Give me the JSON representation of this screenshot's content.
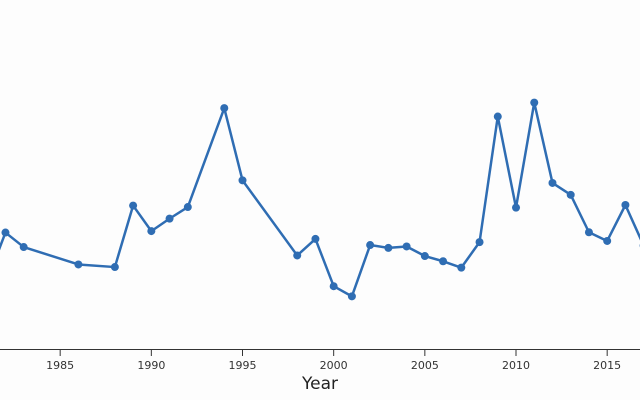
{
  "colors": {
    "line": "#2f6db3",
    "axis": "#333333",
    "background": "#fdfdfd"
  },
  "chart_data": {
    "type": "line",
    "xlabel": "Year",
    "ylabel": "",
    "title": "",
    "grid": false,
    "x_ticks": [
      1985,
      1990,
      1995,
      2000,
      2005,
      2010,
      2015
    ],
    "xlim": [
      1981.7,
      2016.8
    ],
    "ylim": [
      0,
      100
    ],
    "series": [
      {
        "x": [
          1981,
          1982,
          1983,
          1986,
          1988,
          1989,
          1990,
          1991,
          1992,
          1994,
          1995,
          1998,
          1999,
          2000,
          2001,
          2002,
          2003,
          2004,
          2005,
          2006,
          2007,
          2008,
          2009,
          2010,
          2011,
          2012,
          2013,
          2014,
          2015,
          2016,
          2017
        ],
        "y": [
          24,
          40.5,
          35.5,
          29.5,
          28.6,
          49.8,
          41,
          45.3,
          49.3,
          83.4,
          58.5,
          32.6,
          38.3,
          22,
          18.5,
          36.2,
          35.2,
          35.7,
          32.4,
          30.6,
          28.4,
          37.2,
          80.5,
          49.1,
          85.3,
          57.6,
          53.5,
          40.6,
          37.6,
          50,
          36
        ]
      }
    ]
  }
}
